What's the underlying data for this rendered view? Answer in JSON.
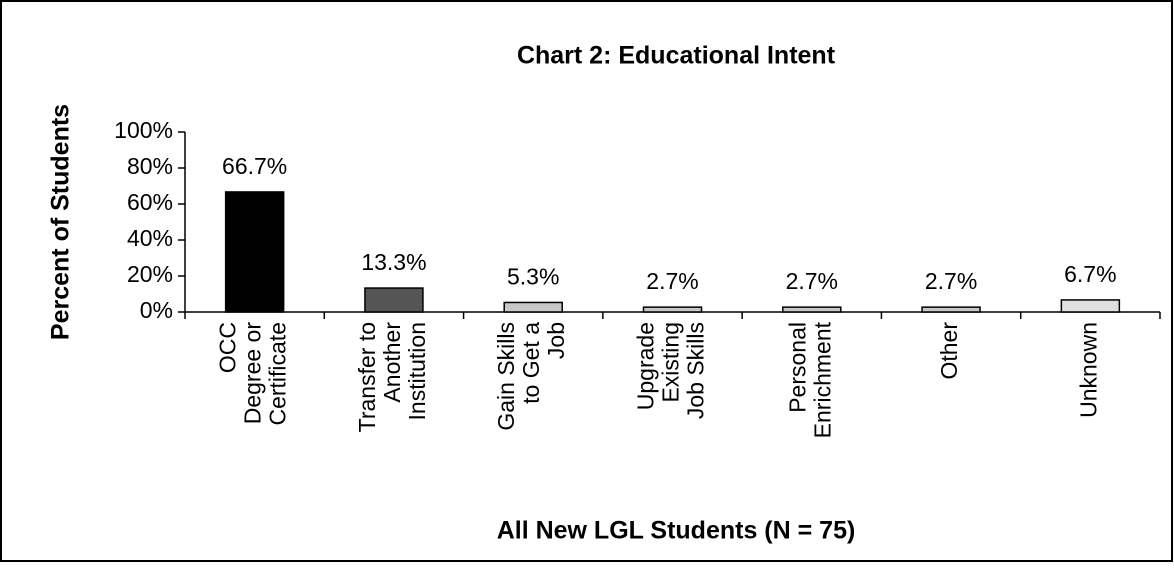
{
  "chart_data": {
    "type": "bar",
    "title": "Chart 2: Educational Intent",
    "x_label": "All New LGL Students (N = 75)",
    "y_label": "Percent of Students",
    "categories": [
      "OCC\nDegree or\nCertificate",
      "Transfer to\nAnother\nInstitution",
      "Gain Skills\nto Get a\nJob",
      "Upgrade\nExisting\nJob Skills",
      "Personal\nEnrichment",
      "Other",
      "Unknown"
    ],
    "values": [
      66.7,
      13.3,
      5.3,
      2.7,
      2.7,
      2.7,
      6.7
    ],
    "value_labels": [
      "66.7%",
      "13.3%",
      "5.3%",
      "2.7%",
      "2.7%",
      "2.7%",
      "6.7%"
    ],
    "colors": [
      "#000000",
      "#555555",
      "#c8c8c8",
      "#c8c8c8",
      "#c8c8c8",
      "#c8c8c8",
      "#e0e0e0"
    ],
    "ylim": [
      0,
      100
    ],
    "yticks": [
      {
        "value": 0,
        "label": "0%"
      },
      {
        "value": 20,
        "label": "20%"
      },
      {
        "value": 40,
        "label": "40%"
      },
      {
        "value": 60,
        "label": "60%"
      },
      {
        "value": 80,
        "label": "80%"
      },
      {
        "value": 100,
        "label": "100%"
      }
    ],
    "grid": false
  }
}
